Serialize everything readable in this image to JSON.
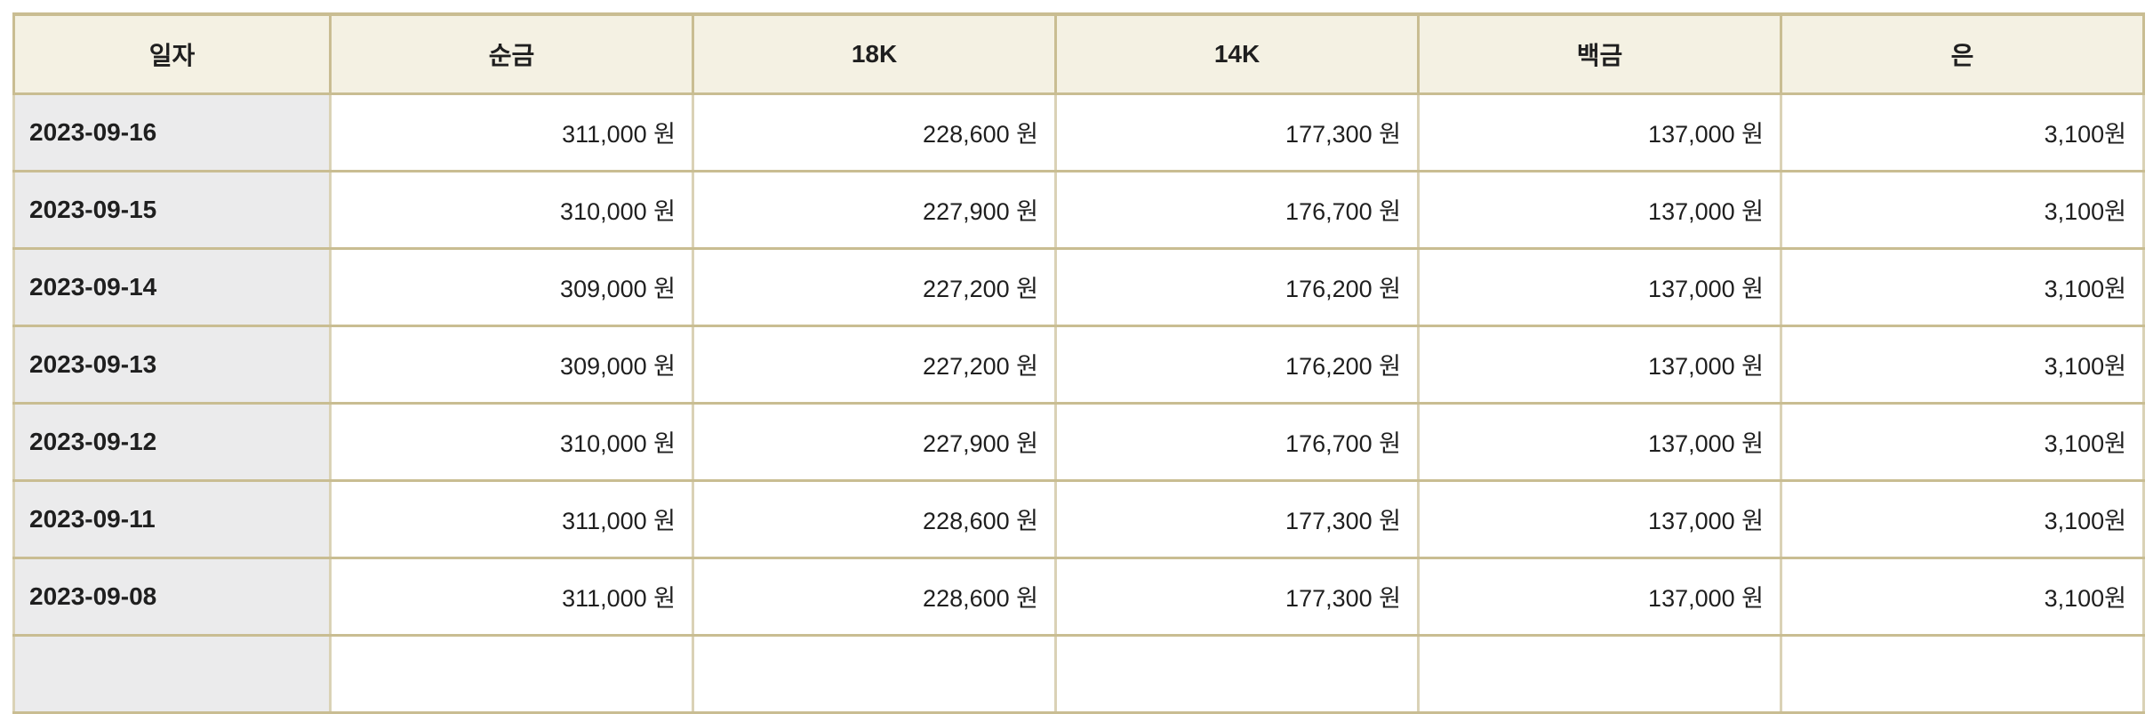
{
  "page": {
    "background": "#ffffff"
  },
  "colors": {
    "page_bg": "#ffffff",
    "header_bg": "#f4f1e3",
    "date_cell_bg": "#ebebec",
    "border_strong": "#c9bd92",
    "border_light": "#dad2b6",
    "text": "#1f1f1f"
  },
  "table": {
    "description": "daily-precious-metal-price-table",
    "columns": [
      {
        "id": "date",
        "label": "일자"
      },
      {
        "id": "pure_gold",
        "label": "순금"
      },
      {
        "id": "k18",
        "label": "18K"
      },
      {
        "id": "k14",
        "label": "14K"
      },
      {
        "id": "platinum",
        "label": "백금"
      },
      {
        "id": "silver",
        "label": "은"
      }
    ],
    "rows": [
      {
        "date": "2023-09-16",
        "pure_gold": "311,000 원",
        "k18": "228,600 원",
        "k14": "177,300 원",
        "platinum": "137,000 원",
        "silver": "3,100원"
      },
      {
        "date": "2023-09-15",
        "pure_gold": "310,000 원",
        "k18": "227,900 원",
        "k14": "176,700 원",
        "platinum": "137,000 원",
        "silver": "3,100원"
      },
      {
        "date": "2023-09-14",
        "pure_gold": "309,000 원",
        "k18": "227,200 원",
        "k14": "176,200 원",
        "platinum": "137,000 원",
        "silver": "3,100원"
      },
      {
        "date": "2023-09-13",
        "pure_gold": "309,000 원",
        "k18": "227,200 원",
        "k14": "176,200 원",
        "platinum": "137,000 원",
        "silver": "3,100원"
      },
      {
        "date": "2023-09-12",
        "pure_gold": "310,000 원",
        "k18": "227,900 원",
        "k14": "176,700 원",
        "platinum": "137,000 원",
        "silver": "3,100원"
      },
      {
        "date": "2023-09-11",
        "pure_gold": "311,000 원",
        "k18": "228,600 원",
        "k14": "177,300 원",
        "platinum": "137,000 원",
        "silver": "3,100원"
      },
      {
        "date": "2023-09-08",
        "pure_gold": "311,000 원",
        "k18": "228,600 원",
        "k14": "177,300 원",
        "platinum": "137,000 원",
        "silver": "3,100원"
      }
    ],
    "partial_row": {
      "visible": true,
      "cells": [
        "",
        "",
        "",
        "",
        "",
        ""
      ]
    }
  }
}
